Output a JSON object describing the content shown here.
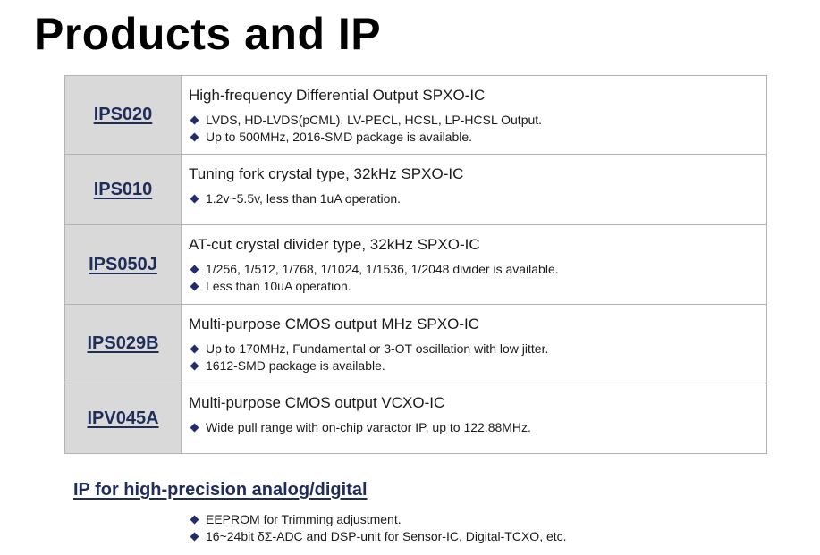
{
  "title": "Products and IP",
  "products": [
    {
      "name": "IPS020",
      "description": "High-frequency Differential Output SPXO-IC",
      "bullets": [
        "LVDS, HD-LVDS(pCML), LV-PECL, HCSL, LP-HCSL Output.",
        "Up to 500MHz, 2016-SMD package is available."
      ]
    },
    {
      "name": "IPS010",
      "description": "Tuning fork crystal type, 32kHz SPXO-IC",
      "bullets": [
        "1.2v~5.5v, less than 1uA operation."
      ]
    },
    {
      "name": "IPS050J",
      "description": "AT-cut crystal divider type, 32kHz SPXO-IC",
      "bullets": [
        "1/256, 1/512, 1/768, 1/1024, 1/1536, 1/2048 divider is available.",
        "Less than 10uA operation."
      ]
    },
    {
      "name": "IPS029B",
      "description": "Multi-purpose CMOS output MHz SPXO-IC",
      "bullets": [
        "Up to 170MHz, Fundamental or 3-OT oscillation with low jitter.",
        "1612-SMD package is available."
      ]
    },
    {
      "name": "IPV045A",
      "description": "Multi-purpose CMOS output VCXO-IC",
      "bullets": [
        "Wide pull range with on-chip varactor IP, up to 122.88MHz."
      ]
    }
  ],
  "ip_section": {
    "heading": "IP for high-precision analog/digital",
    "bullets": [
      "EEPROM for Trimming adjustment.",
      "16~24bit δΣ-ADC and DSP-unit for Sensor-IC, Digital-TCXO, etc."
    ]
  },
  "colors": {
    "name_cell_bg": "#d9d9d9",
    "accent_navy": "#1f2d5a",
    "bullet_diamond": "#1f2d6e",
    "border": "#b3b3b3"
  }
}
